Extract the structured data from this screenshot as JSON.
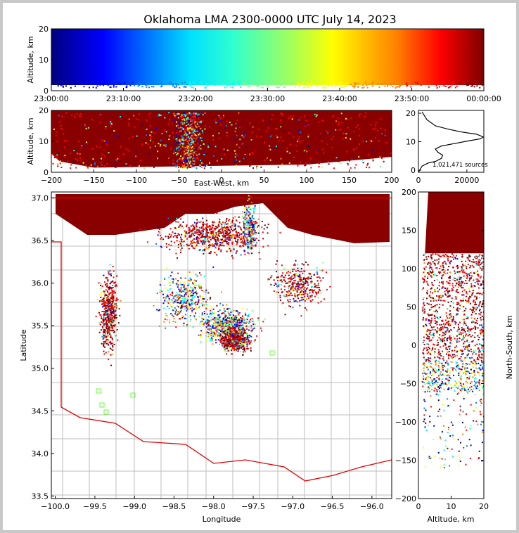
{
  "title": "Oklahoma LMA 2300-0000 UTC July 14, 2023",
  "colors": {
    "jet": [
      "#00007f",
      "#0000ff",
      "#007fff",
      "#00ffff",
      "#7fff7f",
      "#ffff00",
      "#ff7f00",
      "#ff0000",
      "#7f0000"
    ],
    "state_border": "#e00000",
    "county_lines": "#bdbdbd",
    "density_curve": "#000000"
  },
  "chart_data": [
    {
      "id": "time-height",
      "type": "scatter",
      "ylabel": "Altitude, km",
      "ylim": [
        0,
        20
      ],
      "yticks": [
        "0",
        "10",
        "20"
      ],
      "xticks": [
        "23:00:00",
        "23:10:00",
        "23:20:00",
        "23:30:00",
        "23:40:00",
        "23:50:00",
        "00:00:00"
      ],
      "color_by": "time"
    },
    {
      "id": "ew-altitude",
      "type": "scatter",
      "xlabel": "East-West, km",
      "ylabel": "Altitude, km",
      "xlim": [
        -200,
        200
      ],
      "ylim": [
        0,
        20
      ],
      "xticks": [
        "−200",
        "−150",
        "−100",
        "−50",
        "0",
        "50",
        "100",
        "150",
        "200"
      ],
      "yticks": [
        "0",
        "10",
        "20"
      ]
    },
    {
      "id": "altitude-histogram",
      "type": "line",
      "xlim": [
        0,
        27000
      ],
      "ylim": [
        0,
        20
      ],
      "xticks": [
        "0",
        "20000"
      ],
      "yticks": [
        "0",
        "10",
        "20"
      ],
      "annotation": "1,021,471 sources",
      "x": [
        0,
        1500,
        4000,
        7000,
        9500,
        10000,
        8000,
        7000,
        9500,
        15000,
        21000,
        25500,
        26800,
        24000,
        18000,
        12000,
        7000,
        3500,
        1500
      ],
      "y": [
        0,
        2,
        3,
        3.5,
        4.5,
        5.5,
        6.5,
        7.5,
        8.5,
        9.3,
        10.2,
        10.8,
        11.4,
        12.3,
        13,
        14,
        15,
        17,
        19.5
      ]
    },
    {
      "id": "plan-view",
      "type": "scatter",
      "xlabel": "Longitude",
      "ylabel": "Latitude",
      "xlim": [
        -100.05,
        -95.75
      ],
      "ylim": [
        33.47,
        37.07
      ],
      "xticks": [
        "−100.0",
        "−99.5",
        "−99.0",
        "−98.5",
        "−98.0",
        "−97.5",
        "−97.0",
        "−96.5",
        "−96.0"
      ],
      "yticks": [
        "33.5",
        "34.0",
        "34.5",
        "35.0",
        "35.5",
        "36.0",
        "36.5",
        "37.0"
      ]
    },
    {
      "id": "altitude-ns",
      "type": "scatter",
      "xlabel": "Altitude, km",
      "ylabel": "North-South, km",
      "xlim": [
        0,
        20
      ],
      "ylim": [
        -200,
        200
      ],
      "xticks": [
        "0",
        "10",
        "20"
      ],
      "yticks": [
        "−200",
        "−150",
        "−100",
        "−50",
        "0",
        "50",
        "100",
        "150",
        "200"
      ]
    }
  ]
}
